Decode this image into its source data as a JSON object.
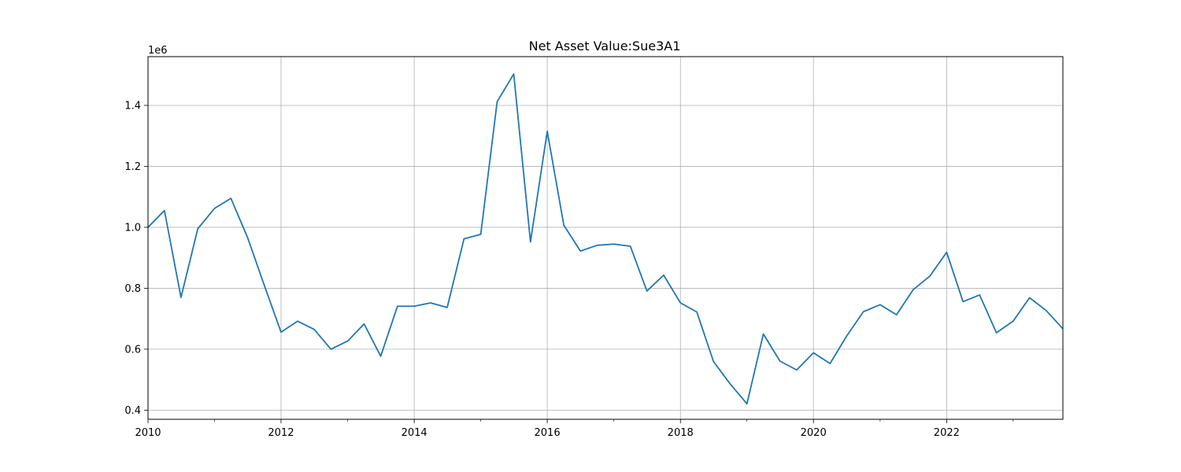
{
  "chart_data": {
    "type": "line",
    "title": "Net Asset Value:Sue3A1",
    "xlabel": "",
    "ylabel": "",
    "offset_label": "1e6",
    "grid": true,
    "line_color": "#1f77b4",
    "xlim": [
      "2010-01-01",
      "2023-10-01"
    ],
    "ylim": [
      370000,
      1560000
    ],
    "x_ticks": [
      "2010",
      "2012",
      "2014",
      "2016",
      "2018",
      "2020",
      "2022"
    ],
    "y_ticks": [
      0.4,
      0.6,
      0.8,
      1.0,
      1.2,
      1.4
    ],
    "series": [
      {
        "x": [
          "2010-01-01",
          "2010-04-01",
          "2010-07-01",
          "2010-10-01",
          "2011-01-01",
          "2011-04-01",
          "2011-07-01",
          "2011-10-01",
          "2012-01-01",
          "2012-04-01",
          "2012-07-01",
          "2012-10-01",
          "2013-01-01",
          "2013-04-01",
          "2013-07-01",
          "2013-10-01",
          "2014-01-01",
          "2014-04-01",
          "2014-07-01",
          "2014-10-01",
          "2015-01-01",
          "2015-04-01",
          "2015-07-01",
          "2015-10-01",
          "2016-01-01",
          "2016-04-01",
          "2016-07-01",
          "2016-10-01",
          "2017-01-01",
          "2017-04-01",
          "2017-07-01",
          "2017-10-01",
          "2018-01-01",
          "2018-04-01",
          "2018-07-01",
          "2018-10-01",
          "2019-01-01",
          "2019-04-01",
          "2019-07-01",
          "2019-10-01",
          "2020-01-01",
          "2020-04-01",
          "2020-07-01",
          "2020-10-01",
          "2021-01-01",
          "2021-04-01",
          "2021-07-01",
          "2021-10-01",
          "2022-01-01",
          "2022-04-01",
          "2022-07-01",
          "2022-10-01",
          "2023-01-01",
          "2023-04-01",
          "2023-07-01",
          "2023-10-01"
        ],
        "values": [
          1000000,
          1055000,
          770000,
          995000,
          1062000,
          1095000,
          967000,
          810000,
          656000,
          692000,
          665000,
          600000,
          627000,
          683000,
          577000,
          741000,
          741000,
          752000,
          737000,
          962000,
          977000,
          1412000,
          1503000,
          952000,
          1315000,
          1007000,
          922000,
          941000,
          945000,
          938000,
          791000,
          843000,
          752000,
          722000,
          560000,
          486000,
          421000,
          650000,
          561000,
          532000,
          588000,
          553000,
          643000,
          723000,
          746000,
          713000,
          795000,
          840000,
          918000,
          756000,
          778000,
          654000,
          692000,
          769000,
          727000,
          667000
        ]
      }
    ]
  }
}
